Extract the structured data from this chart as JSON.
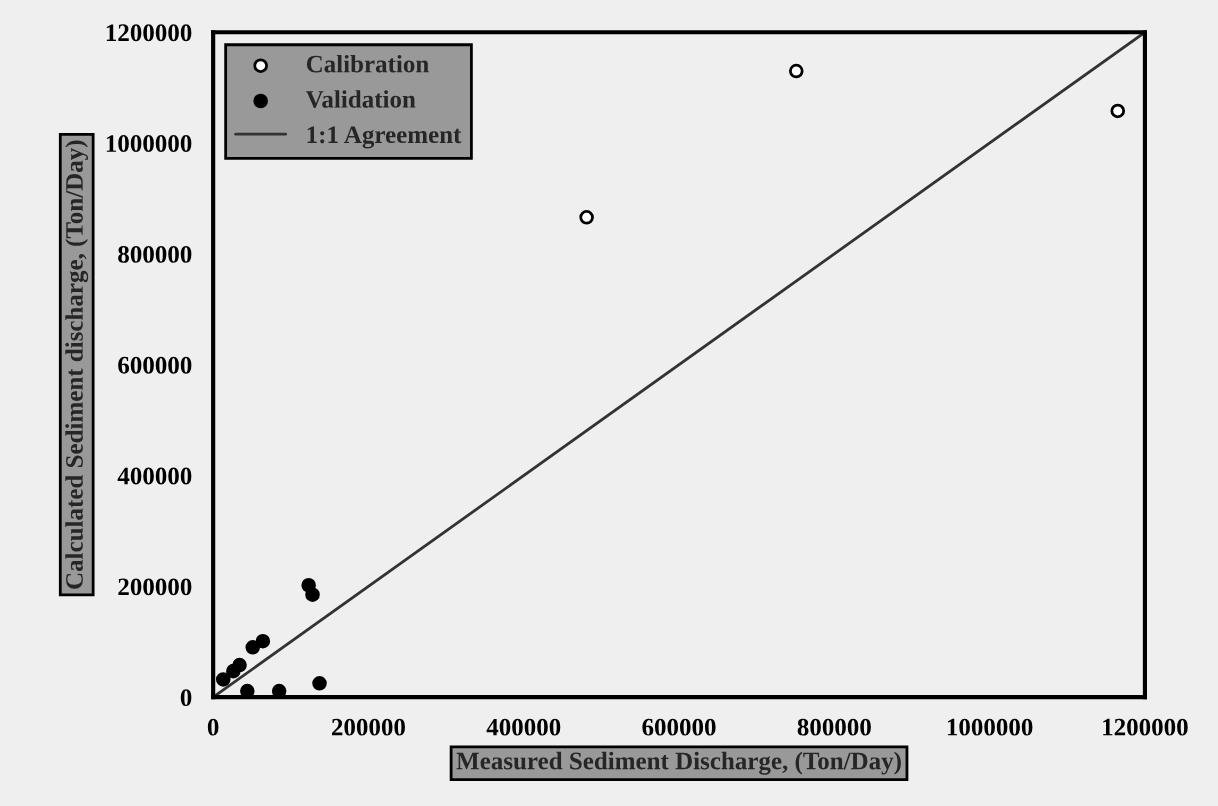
{
  "chart_data": {
    "type": "scatter",
    "xlabel": "Measured Sediment Discharge, (Ton/Day)",
    "ylabel": "Calculated Sediment discharge, (Ton/Day)",
    "xlim": [
      0,
      1200000
    ],
    "ylim": [
      0,
      1200000
    ],
    "xticks": [
      0,
      200000,
      400000,
      600000,
      800000,
      1000000,
      1200000
    ],
    "yticks": [
      0,
      200000,
      400000,
      600000,
      800000,
      1000000,
      1200000
    ],
    "legend": "top left",
    "grid": false,
    "series": [
      {
        "name": "Calibration",
        "marker": "circle",
        "color": "#ffffff",
        "x": [
          481000,
          751000,
          1165000
        ],
        "values": [
          866000,
          1130000,
          1058000
        ]
      },
      {
        "name": "Validation",
        "marker": "circle",
        "color": "#000000",
        "x": [
          123000,
          128000,
          137000,
          85000,
          44000,
          64000,
          51000,
          34000,
          26000,
          13000
        ],
        "values": [
          202000,
          185000,
          25000,
          11000,
          11000,
          101000,
          90000,
          58000,
          47000,
          32000
        ]
      },
      {
        "name": "1:1 Agreement",
        "type": "line",
        "marker": "none",
        "line_style": "solid",
        "color": "#333333",
        "x": [
          0,
          1200000
        ],
        "values": [
          0,
          1200000
        ]
      }
    ]
  }
}
